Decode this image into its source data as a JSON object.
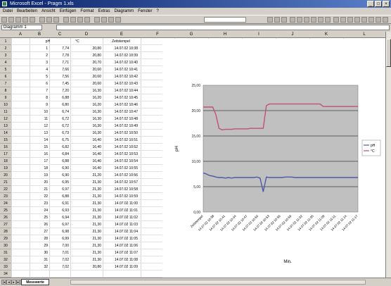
{
  "window": {
    "title": "Microsoft Excel - Pragm 1.xls"
  },
  "menu": [
    "Datei",
    "Bearbeiten",
    "Ansicht",
    "Einfügen",
    "Format",
    "Extras",
    "Diagramm",
    "Fenster",
    "?"
  ],
  "name_box": "Diagramm 1",
  "columns": [
    "A",
    "B",
    "C",
    "D",
    "E",
    "F",
    "G",
    "H",
    "I",
    "J",
    "K",
    "L"
  ],
  "sheet": {
    "headers": [
      "pH",
      "°C",
      "Zeitstempel"
    ],
    "rows": [
      {
        "n": "1",
        "ph": "7,74",
        "t": "20,80",
        "ts": "14.07.02 10:38"
      },
      {
        "n": "2",
        "ph": "7,78",
        "t": "20,80",
        "ts": "14.07.02 10:39"
      },
      {
        "n": "3",
        "ph": "7,71",
        "t": "20,70",
        "ts": "14.07.02 10:40"
      },
      {
        "n": "4",
        "ph": "7,66",
        "t": "20,60",
        "ts": "14.07.02 10:41"
      },
      {
        "n": "5",
        "ph": "7,56",
        "t": "20,60",
        "ts": "14.07.02 10:42"
      },
      {
        "n": "6",
        "ph": "7,45",
        "t": "20,60",
        "ts": "14.07.02 10:43"
      },
      {
        "n": "7",
        "ph": "7,20",
        "t": "16,30",
        "ts": "14.07.02 10:44"
      },
      {
        "n": "8",
        "ph": "6,88",
        "t": "16,20",
        "ts": "14.07.02 10:45"
      },
      {
        "n": "9",
        "ph": "6,80",
        "t": "16,20",
        "ts": "14.07.02 10:46"
      },
      {
        "n": "10",
        "ph": "6,74",
        "t": "16,30",
        "ts": "14.07.02 10:47"
      },
      {
        "n": "11",
        "ph": "6,72",
        "t": "16,30",
        "ts": "14.07.02 10:48"
      },
      {
        "n": "12",
        "ph": "6,72",
        "t": "16,30",
        "ts": "14.07.02 10:49"
      },
      {
        "n": "13",
        "ph": "6,73",
        "t": "16,30",
        "ts": "14.07.02 10:50"
      },
      {
        "n": "14",
        "ph": "6,75",
        "t": "16,40",
        "ts": "14.07.02 10:51"
      },
      {
        "n": "15",
        "ph": "6,82",
        "t": "16,40",
        "ts": "14.07.02 10:52"
      },
      {
        "n": "16",
        "ph": "6,84",
        "t": "16,40",
        "ts": "14.07.02 10:53"
      },
      {
        "n": "17",
        "ph": "6,88",
        "t": "16,40",
        "ts": "14.07.02 10:54"
      },
      {
        "n": "18",
        "ph": "6,90",
        "t": "16,40",
        "ts": "14.07.02 10:55"
      },
      {
        "n": "19",
        "ph": "6,90",
        "t": "21,20",
        "ts": "14.07.02 10:56"
      },
      {
        "n": "20",
        "ph": "6,95",
        "t": "21,30",
        "ts": "14.07.02 10:57"
      },
      {
        "n": "21",
        "ph": "6,97",
        "t": "21,30",
        "ts": "14.07.02 10:58"
      },
      {
        "n": "22",
        "ph": "6,88",
        "t": "21,30",
        "ts": "14.07.02 10:59"
      },
      {
        "n": "23",
        "ph": "6,91",
        "t": "21,30",
        "ts": "14.07.02 11:00"
      },
      {
        "n": "24",
        "ph": "6,93",
        "t": "21,30",
        "ts": "14.07.02 11:01"
      },
      {
        "n": "25",
        "ph": "6,94",
        "t": "21,30",
        "ts": "14.07.02 11:02"
      },
      {
        "n": "26",
        "ph": "6,97",
        "t": "21,30",
        "ts": "14.07.02 11:03"
      },
      {
        "n": "27",
        "ph": "6,98",
        "t": "21,30",
        "ts": "14.07.02 11:04"
      },
      {
        "n": "28",
        "ph": "6,99",
        "t": "21,30",
        "ts": "14.07.02 11:05"
      },
      {
        "n": "29",
        "ph": "7,00",
        "t": "21,30",
        "ts": "14.07.02 11:06"
      },
      {
        "n": "30",
        "ph": "7,01",
        "t": "21,30",
        "ts": "14.07.02 11:07"
      },
      {
        "n": "31",
        "ph": "7,02",
        "t": "21,30",
        "ts": "14.07.02 11:08"
      },
      {
        "n": "32",
        "ph": "7,02",
        "t": "20,80",
        "ts": "14.07.02 11:09"
      }
    ]
  },
  "sheet_tab": "Messwerte",
  "chart_data": {
    "type": "line",
    "title": "",
    "xlabel": "Min.",
    "ylabel": "pH",
    "ylim": [
      0,
      25
    ],
    "yticks": [
      "0,00",
      "5,00",
      "10,00",
      "15,00",
      "20,00",
      "25,00"
    ],
    "grid": true,
    "legend_position": "right",
    "x_tick_labels": [
      "Zeitstempel",
      "14.07.02 10:38",
      "14.07.02 10:41",
      "14.07.02 10:44",
      "14.07.02 10:47",
      "14.07.02 10:50",
      "14.07.02 10:53",
      "14.07.02 10:56",
      "14.07.02 10:59",
      "14.07.02 11:02",
      "14.07.02 11:05",
      "14.07.02 11:08",
      "14.07.02 11:11",
      "14.07.02 11:14",
      "14.07.02 11:17"
    ],
    "series": [
      {
        "name": "pH",
        "color": "#4a5aa8",
        "values": [
          7.7,
          7.5,
          7.2,
          7.1,
          6.9,
          6.8,
          6.8,
          6.7,
          6.8,
          6.7,
          6.8,
          6.8,
          6.8,
          6.8,
          6.8,
          6.8,
          6.8,
          6.9,
          6.7,
          4.0,
          6.9,
          6.8,
          6.8,
          6.8,
          6.8,
          6.8,
          6.9,
          6.9,
          6.9,
          6.8,
          6.8,
          6.8,
          6.8,
          6.8,
          6.8,
          6.8,
          6.8,
          6.8,
          6.8,
          6.8,
          6.8,
          6.8,
          6.8,
          6.8,
          6.8,
          6.8,
          6.8,
          6.8,
          6.8,
          6.8
        ]
      },
      {
        "name": "°C",
        "color": "#c0507a",
        "values": [
          20.7,
          20.7,
          20.7,
          20.7,
          19.2,
          16.5,
          16.2,
          16.3,
          16.3,
          16.3,
          16.4,
          16.4,
          16.4,
          16.4,
          16.4,
          16.5,
          16.5,
          16.5,
          16.5,
          16.5,
          21.0,
          21.3,
          21.3,
          21.3,
          21.3,
          21.3,
          21.3,
          21.3,
          21.3,
          21.3,
          21.3,
          21.3,
          21.3,
          21.3,
          21.3,
          21.3,
          21.3,
          21.3,
          20.8,
          20.8,
          20.8,
          20.8,
          20.8,
          20.8,
          20.8,
          20.8,
          20.8,
          20.8,
          20.8,
          20.8
        ]
      }
    ]
  }
}
